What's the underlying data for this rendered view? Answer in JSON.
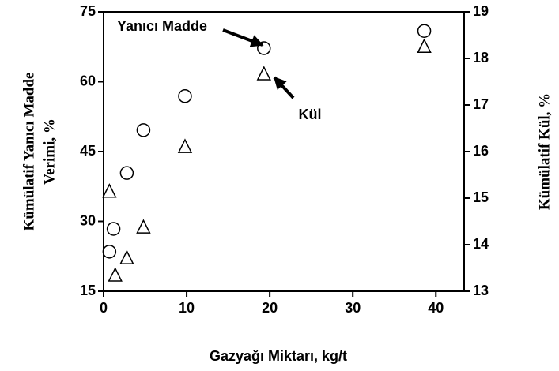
{
  "chart_data": {
    "type": "scatter",
    "xlabel": "Gazyağı Miktarı, kg/t",
    "ylabel": [
      "Kümülatif Yanıcı Madde",
      "Verimi,  %"
    ],
    "y2label": "Kümülatif Kül, %",
    "xlim": [
      0,
      43.4
    ],
    "xticks": [
      0,
      10,
      20,
      30,
      40
    ],
    "ylim": [
      15,
      75
    ],
    "yticks": [
      15,
      30,
      45,
      60,
      75
    ],
    "y2lim": [
      13,
      19
    ],
    "y2ticks": [
      13,
      14,
      15,
      16,
      17,
      18,
      19
    ],
    "series": [
      {
        "name": "Yanıcı Madde",
        "color": "#000000",
        "marker": "circle",
        "x": [
          0.7,
          1.2,
          2.8,
          4.8,
          9.8,
          19.3,
          38.6
        ],
        "values": [
          23.5,
          28.4,
          40.4,
          49.6,
          56.9,
          67.2,
          70.9
        ]
      },
      {
        "name": "Kül",
        "color": "#000000",
        "marker": "triangle",
        "axis": "y2",
        "x": [
          0.7,
          1.4,
          2.8,
          4.8,
          9.8,
          19.3,
          38.6
        ],
        "values": [
          15.14,
          13.34,
          13.71,
          14.37,
          16.1,
          17.66,
          18.25
        ]
      }
    ]
  }
}
